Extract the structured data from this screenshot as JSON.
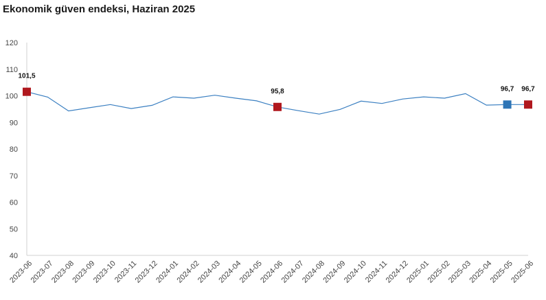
{
  "chart_data": {
    "type": "line",
    "title": "Ekonomik güven endeksi, Haziran 2025",
    "xlabel": "",
    "ylabel": "",
    "ylim": [
      40,
      120
    ],
    "yticks": [
      40,
      50,
      60,
      70,
      80,
      90,
      100,
      110,
      120
    ],
    "categories": [
      "2023-06",
      "2023-07",
      "2023-08",
      "2023-09",
      "2023-10",
      "2023-11",
      "2023-12",
      "2024-01",
      "2024-02",
      "2024-03",
      "2024-04",
      "2024-05",
      "2024-06",
      "2024-07",
      "2024-08",
      "2024-09",
      "2024-10",
      "2024-11",
      "2024-12",
      "2025-01",
      "2025-02",
      "2025-03",
      "2025-04",
      "2025-05",
      "2025-06"
    ],
    "series": [
      {
        "name": "Ekonomik güven endeksi",
        "color": "#3a7fc1",
        "values": [
          101.5,
          99.5,
          94.3,
          95.5,
          96.7,
          95.2,
          96.4,
          99.6,
          99.1,
          100.2,
          99.1,
          98.1,
          95.8,
          94.4,
          93.1,
          94.9,
          98.0,
          97.1,
          98.8,
          99.6,
          99.1,
          100.8,
          96.5,
          96.7,
          96.7
        ]
      }
    ],
    "highlights": [
      {
        "index": 0,
        "label": "101,5",
        "color": "#b0181e"
      },
      {
        "index": 12,
        "label": "95,8",
        "color": "#b0181e"
      },
      {
        "index": 23,
        "label": "96,7",
        "color": "#2e75b6"
      },
      {
        "index": 24,
        "label": "96,7",
        "color": "#b0181e"
      }
    ]
  }
}
